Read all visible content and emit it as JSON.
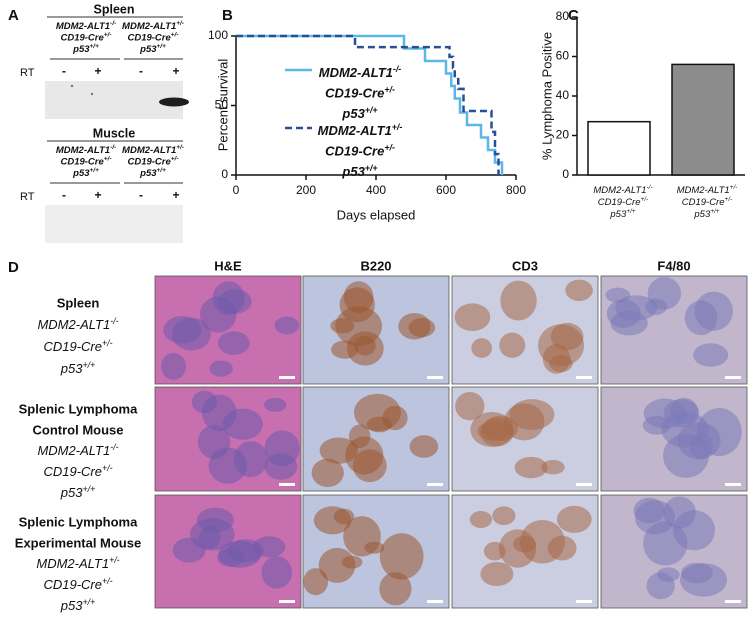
{
  "panel_labels": [
    "A",
    "B",
    "C",
    "D"
  ],
  "panel_a": {
    "blots": [
      {
        "tissue": "Spleen",
        "genotypes": [
          [
            {
              "base": "MDM2-ALT1",
              "sup": "-/-"
            },
            {
              "base": "CD19-Cre",
              "sup": "+/-"
            },
            {
              "base": "p53",
              "sup": "+/+"
            }
          ],
          [
            {
              "base": "MDM2-ALT1",
              "sup": "+/-"
            },
            {
              "base": "CD19-Cre",
              "sup": "+/-"
            },
            {
              "base": "p53",
              "sup": "+/+"
            }
          ]
        ],
        "rt_label": "RT",
        "lanes": [
          "-",
          "+",
          "-",
          "+"
        ]
      },
      {
        "tissue": "Muscle",
        "genotypes": [
          [
            {
              "base": "MDM2-ALT1",
              "sup": "-/-"
            },
            {
              "base": "CD19-Cre",
              "sup": "+/-"
            },
            {
              "base": "p53",
              "sup": "+/+"
            }
          ],
          [
            {
              "base": "MDM2-ALT1",
              "sup": "+/-"
            },
            {
              "base": "CD19-Cre",
              "sup": "+/-"
            },
            {
              "base": "p53",
              "sup": "+/+"
            }
          ]
        ],
        "rt_label": "RT",
        "lanes": [
          "-",
          "+",
          "-",
          "+"
        ]
      }
    ]
  },
  "chart_data": [
    {
      "type": "line",
      "x_label": "Days elapsed",
      "y_label": "Percent survival",
      "xlim": [
        0,
        800
      ],
      "ylim": [
        0,
        100
      ],
      "xticks": [
        0,
        200,
        400,
        600,
        800
      ],
      "yticks": [
        0,
        50,
        100
      ],
      "series": [
        {
          "name": [
            {
              "base": "MDM2-ALT1",
              "sup": "-/-"
            },
            {
              "base": "CD19-Cre",
              "sup": "+/-"
            },
            {
              "base": "p53",
              "sup": "+/+"
            }
          ],
          "color": "#5bb8e6",
          "linestyle": "solid",
          "x": [
            0,
            480,
            480,
            540,
            540,
            600,
            600,
            615,
            615,
            625,
            625,
            640,
            640,
            660,
            660,
            700,
            700,
            720,
            720,
            740,
            740,
            760,
            760
          ],
          "values": [
            100,
            100,
            91,
            91,
            82,
            82,
            73,
            73,
            64,
            64,
            55,
            55,
            45,
            45,
            36,
            36,
            27,
            27,
            18,
            18,
            9,
            9,
            0
          ]
        },
        {
          "name": [
            {
              "base": "MDM2-ALT1",
              "sup": "+/-"
            },
            {
              "base": "CD19-Cre",
              "sup": "+/-"
            },
            {
              "base": "p53",
              "sup": "+/+"
            }
          ],
          "color": "#2a4f9a",
          "linestyle": "dashed",
          "x": [
            0,
            340,
            340,
            610,
            610,
            620,
            620,
            625,
            625,
            635,
            635,
            650,
            650,
            730,
            730,
            740,
            740,
            750,
            750
          ],
          "values": [
            100,
            100,
            92,
            92,
            85,
            85,
            77,
            77,
            69,
            69,
            62,
            62,
            46,
            46,
            31,
            31,
            15,
            15,
            0
          ]
        }
      ]
    },
    {
      "type": "bar",
      "y_label": "% Lymphoma Positive",
      "ylim": [
        0,
        80
      ],
      "yticks": [
        0,
        20,
        40,
        60,
        80
      ],
      "categories": [
        [
          {
            "base": "MDM2-ALT1",
            "sup": "-/-"
          },
          {
            "base": "CD19-Cre",
            "sup": "+/-"
          },
          {
            "base": "p53",
            "sup": "+/+"
          }
        ],
        [
          {
            "base": "MDM2-ALT1",
            "sup": "+/-"
          },
          {
            "base": "CD19-Cre",
            "sup": "+/-"
          },
          {
            "base": "p53",
            "sup": "+/+"
          }
        ]
      ],
      "values": [
        27,
        56
      ],
      "colors": [
        "#ffffff",
        "#8c8c8c"
      ]
    }
  ],
  "panel_d": {
    "columns": [
      "H&E",
      "B220",
      "CD3",
      "F4/80"
    ],
    "rows": [
      {
        "title": [
          "Spleen"
        ],
        "genotype": [
          {
            "base": "MDM2-ALT1",
            "sup": "-/-"
          },
          {
            "base": "CD19-Cre",
            "sup": "+/-"
          },
          {
            "base": "p53",
            "sup": "+/+"
          }
        ]
      },
      {
        "title": [
          "Splenic Lymphoma",
          "Control Mouse"
        ],
        "genotype": [
          {
            "base": "MDM2-ALT1",
            "sup": "-/-"
          },
          {
            "base": "CD19-Cre",
            "sup": "+/-"
          },
          {
            "base": "p53",
            "sup": "+/+"
          }
        ]
      },
      {
        "title": [
          "Splenic Lymphoma",
          "Experimental Mouse"
        ],
        "genotype": [
          {
            "base": "MDM2-ALT1",
            "sup": "+/-"
          },
          {
            "base": "CD19-Cre",
            "sup": "+/-"
          },
          {
            "base": "p53",
            "sup": "+/+"
          }
        ]
      }
    ]
  }
}
